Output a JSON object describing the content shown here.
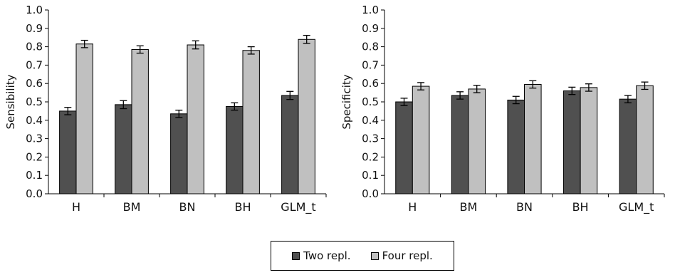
{
  "chart_data": [
    {
      "type": "bar",
      "title": "",
      "xlabel": "",
      "ylabel": "Sensibility",
      "ylim": [
        0,
        1.0
      ],
      "categories": [
        "H",
        "BM",
        "BN",
        "BH",
        "GLM_t"
      ],
      "series": [
        {
          "name": "Two repl.",
          "color": "#505050",
          "values": [
            0.45,
            0.485,
            0.435,
            0.475,
            0.535
          ],
          "errors": [
            0.02,
            0.022,
            0.02,
            0.02,
            0.022
          ]
        },
        {
          "name": "Four repl.",
          "color": "#c0c0c0",
          "values": [
            0.815,
            0.785,
            0.81,
            0.78,
            0.84
          ],
          "errors": [
            0.02,
            0.02,
            0.022,
            0.02,
            0.022
          ]
        }
      ],
      "yticks": [
        "0.0",
        "0.1",
        "0.2",
        "0.3",
        "0.4",
        "0.5",
        "0.6",
        "0.7",
        "0.8",
        "0.9",
        "1.0"
      ],
      "grid": false
    },
    {
      "type": "bar",
      "title": "",
      "xlabel": "",
      "ylabel": "Specificity",
      "ylim": [
        0,
        1.0
      ],
      "categories": [
        "H",
        "BM",
        "BN",
        "BH",
        "GLM_t"
      ],
      "series": [
        {
          "name": "Two repl.",
          "color": "#505050",
          "values": [
            0.5,
            0.535,
            0.51,
            0.56,
            0.515
          ],
          "errors": [
            0.02,
            0.02,
            0.02,
            0.02,
            0.02
          ]
        },
        {
          "name": "Four repl.",
          "color": "#c0c0c0",
          "values": [
            0.585,
            0.57,
            0.595,
            0.578,
            0.588
          ],
          "errors": [
            0.02,
            0.02,
            0.02,
            0.02,
            0.02
          ]
        }
      ],
      "yticks": [
        "0.0",
        "0.1",
        "0.2",
        "0.3",
        "0.4",
        "0.5",
        "0.6",
        "0.7",
        "0.8",
        "0.9",
        "1.0"
      ],
      "grid": false
    }
  ],
  "legend": {
    "placement": "bottom-center",
    "items": [
      {
        "label": "Two repl.",
        "color": "#505050"
      },
      {
        "label": "Four repl.",
        "color": "#c0c0c0"
      }
    ]
  }
}
